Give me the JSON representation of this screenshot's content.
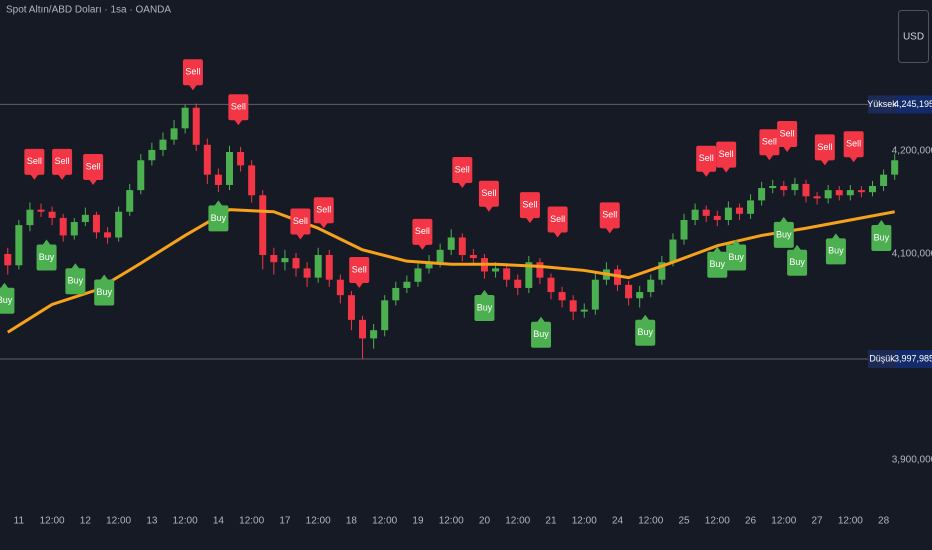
{
  "chart_data": {
    "type": "candlestick",
    "title": "Spot Altın/ABD Doları · 1sa · OANDA",
    "currency": "USD",
    "xlim": [
      -0.7,
      80.3
    ],
    "xticks": [
      {
        "value": 1,
        "label": "11"
      },
      {
        "value": 4,
        "label": "12:00"
      },
      {
        "value": 7,
        "label": "12"
      },
      {
        "value": 10,
        "label": "12:00"
      },
      {
        "value": 13,
        "label": "13"
      },
      {
        "value": 16,
        "label": "12:00"
      },
      {
        "value": 19,
        "label": "14"
      },
      {
        "value": 22,
        "label": "12:00"
      },
      {
        "value": 25,
        "label": "17"
      },
      {
        "value": 28,
        "label": "12:00"
      },
      {
        "value": 31,
        "label": "18"
      },
      {
        "value": 34,
        "label": "12:00"
      },
      {
        "value": 37,
        "label": "19"
      },
      {
        "value": 40,
        "label": "12:00"
      },
      {
        "value": 43,
        "label": "20"
      },
      {
        "value": 46,
        "label": "12:00"
      },
      {
        "value": 49,
        "label": "21"
      },
      {
        "value": 52,
        "label": "12:00"
      },
      {
        "value": 55,
        "label": "24"
      },
      {
        "value": 58,
        "label": "12:00"
      },
      {
        "value": 61,
        "label": "25"
      },
      {
        "value": 64,
        "label": "12:00"
      },
      {
        "value": 67,
        "label": "26"
      },
      {
        "value": 70,
        "label": "12:00"
      },
      {
        "value": 73,
        "label": "27"
      },
      {
        "value": 76,
        "label": "12:00"
      },
      {
        "value": 79,
        "label": "28"
      }
    ],
    "ylim": [
      3861.1,
      4346.6
    ],
    "yticks": [
      {
        "value": 4200,
        "label": "4,200,000"
      },
      {
        "value": 4100,
        "label": "4,100,000"
      },
      {
        "value": 3900,
        "label": "3,900,000"
      }
    ],
    "candles": {
      "up_color": "#4caf50",
      "down_color": "#f23645",
      "open": [
        4100,
        4089,
        4128,
        4143,
        4141,
        4135,
        4118,
        4131,
        4138,
        4121,
        4116,
        4141,
        4162,
        4191,
        4201,
        4211,
        4222,
        4242,
        4206,
        4177,
        4167,
        4199,
        4186,
        4157,
        4099,
        4092,
        4096,
        4086,
        4077,
        4099,
        4075,
        4060,
        4036,
        4018,
        4026,
        4055,
        4067,
        4073,
        4086,
        4092,
        4104,
        4116,
        4099,
        4096,
        4083,
        4086,
        4075,
        4067,
        4092,
        4077,
        4063,
        4055,
        4044,
        4046,
        4075,
        4085,
        4070,
        4057,
        4063,
        4075,
        4092,
        4114,
        4133,
        4143,
        4137,
        4133,
        4145,
        4139,
        4152,
        4164,
        4166,
        4162,
        4168,
        4156,
        4154,
        4162,
        4157,
        4162,
        4160,
        4166,
        4177
      ],
      "high": [
        4106,
        4133,
        4150,
        4149,
        4146,
        4139,
        4135,
        4145,
        4141,
        4126,
        4146,
        4168,
        4197,
        4208,
        4218,
        4230,
        4245,
        4246,
        4212,
        4183,
        4205,
        4204,
        4191,
        4162,
        4106,
        4104,
        4101,
        4092,
        4106,
        4104,
        4080,
        4064,
        4040,
        4032,
        4060,
        4073,
        4079,
        4091,
        4099,
        4110,
        4124,
        4120,
        4105,
        4100,
        4092,
        4091,
        4080,
        4098,
        4096,
        4081,
        4068,
        4060,
        4052,
        4082,
        4092,
        4089,
        4074,
        4069,
        4080,
        4098,
        4120,
        4139,
        4149,
        4147,
        4142,
        4151,
        4149,
        4158,
        4170,
        4172,
        4171,
        4174,
        4172,
        4160,
        4167,
        4166,
        4167,
        4166,
        4171,
        4182,
        4197
      ],
      "low": [
        4080,
        4085,
        4122,
        4136,
        4128,
        4112,
        4114,
        4127,
        4115,
        4110,
        4112,
        4137,
        4158,
        4186,
        4195,
        4206,
        4217,
        4200,
        4168,
        4160,
        4162,
        4180,
        4150,
        4085,
        4080,
        4084,
        4078,
        4068,
        4072,
        4068,
        4052,
        4026,
        3998,
        4008,
        4020,
        4050,
        4062,
        4068,
        4081,
        4087,
        4099,
        4093,
        4089,
        4076,
        4077,
        4068,
        4060,
        4062,
        4071,
        4056,
        4048,
        4036,
        4038,
        4041,
        4070,
        4064,
        4050,
        4048,
        4058,
        4070,
        4088,
        4109,
        4128,
        4131,
        4127,
        4128,
        4133,
        4134,
        4147,
        4159,
        4156,
        4157,
        4150,
        4148,
        4149,
        4152,
        4152,
        4155,
        4156,
        4161,
        4172
      ],
      "close": [
        4089,
        4128,
        4143,
        4141,
        4135,
        4118,
        4131,
        4138,
        4121,
        4116,
        4141,
        4162,
        4191,
        4201,
        4211,
        4222,
        4242,
        4206,
        4177,
        4167,
        4199,
        4186,
        4157,
        4099,
        4092,
        4096,
        4086,
        4077,
        4099,
        4075,
        4060,
        4036,
        4018,
        4026,
        4055,
        4067,
        4073,
        4086,
        4092,
        4104,
        4116,
        4099,
        4096,
        4083,
        4086,
        4075,
        4067,
        4092,
        4077,
        4063,
        4055,
        4044,
        4046,
        4075,
        4085,
        4070,
        4057,
        4063,
        4075,
        4092,
        4114,
        4133,
        4143,
        4137,
        4133,
        4145,
        4139,
        4152,
        4164,
        4166,
        4162,
        4168,
        4156,
        4154,
        4162,
        4157,
        4162,
        4160,
        4166,
        4177,
        4191
      ]
    },
    "ma": {
      "color": "#f7a21b",
      "x": [
        0,
        4,
        8,
        12,
        16,
        20,
        24,
        28,
        32,
        36,
        40,
        44,
        48,
        52,
        56,
        60,
        64,
        68,
        72,
        76,
        80
      ],
      "values": [
        4024,
        4051,
        4065,
        4091,
        4118,
        4143,
        4141,
        4125,
        4104,
        4093,
        4090,
        4090,
        4088,
        4084,
        4077,
        4092,
        4108,
        4118,
        4125,
        4133,
        4141
      ]
    },
    "levels": [
      {
        "name": "Yüksek",
        "value": 4245.195,
        "label": "4,245,195"
      },
      {
        "name": "Düşük",
        "value": 3997.985,
        "label": "3,997,985"
      }
    ],
    "signals": [
      {
        "name": "Sell",
        "color": "#f23645",
        "placement": "above",
        "x": [
          16.7,
          20.8,
          2.4,
          4.9,
          7.7,
          26.4,
          28.5,
          31.7,
          37.4,
          41,
          43.4,
          47.1,
          49.6,
          54.3,
          63,
          64.8,
          68.7,
          70.3,
          73.7,
          76.3
        ],
        "values": [
          4259,
          4225,
          4172,
          4172,
          4167,
          4114,
          4125,
          4067,
          4104,
          4164,
          4141,
          4130,
          4116,
          4120,
          4175,
          4179,
          4191,
          4199,
          4186,
          4189
        ]
      },
      {
        "name": "Buy",
        "color": "#4caf50",
        "placement": "below",
        "x": [
          -0.3,
          3.5,
          6.1,
          8.7,
          19,
          43,
          48.1,
          57.5,
          64,
          65.7,
          70,
          71.2,
          74.7,
          78.8
        ],
        "values": [
          4072,
          4114,
          4091,
          4080,
          4152,
          4065,
          4039,
          4041,
          4107,
          4114,
          4136,
          4109,
          4120,
          4133
        ]
      }
    ]
  }
}
